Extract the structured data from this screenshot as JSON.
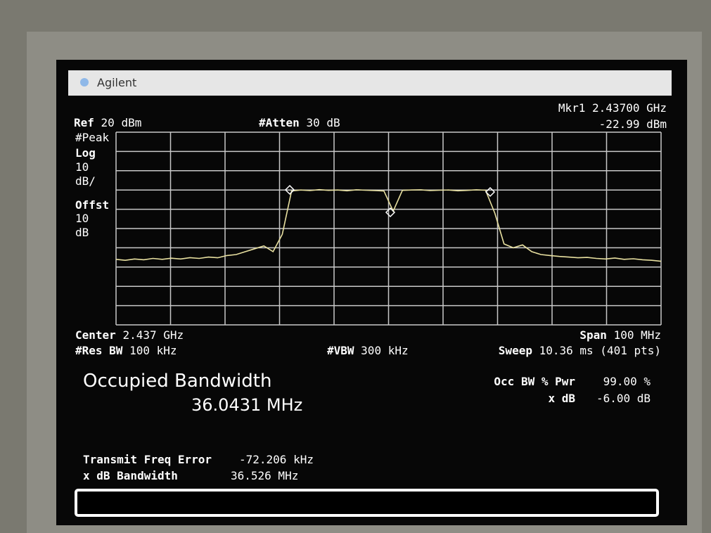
{
  "header": {
    "brand": "Agilent"
  },
  "settings": {
    "ref": {
      "label": "Ref",
      "value": "20 dBm"
    },
    "atten": {
      "label": "#Atten",
      "value": "30 dB"
    },
    "marker": {
      "label": "Mkr1",
      "freq": "2.43700 GHz",
      "level": "-22.99 dBm"
    },
    "detector": "#Peak",
    "scale": {
      "label": "Log",
      "per_div": "10",
      "unit": "dB/"
    },
    "offset": {
      "label": "Offst",
      "value": "10",
      "unit": "dB"
    },
    "center": {
      "label": "Center",
      "value": "2.437 GHz"
    },
    "span": {
      "label": "Span",
      "value": "100 MHz"
    },
    "rbw": {
      "label": "#Res BW",
      "value": "100 kHz"
    },
    "vbw": {
      "label": "#VBW",
      "value": "300 kHz"
    },
    "sweep": {
      "label": "Sweep",
      "value": "10.36 ms (401 pts)"
    }
  },
  "chart_data": {
    "type": "line",
    "color": "#e8e0a0",
    "ylim": [
      -80,
      20
    ],
    "yticks": [
      20,
      10,
      0,
      -10,
      -20,
      -30,
      -40,
      -50,
      -60,
      -70,
      -80
    ],
    "grid": true,
    "values": [
      -46,
      -46.5,
      -45.8,
      -46.2,
      -45.5,
      -46,
      -45.4,
      -45.8,
      -45.1,
      -45.5,
      -44.8,
      -45.2,
      -44,
      -43.5,
      -42,
      -40.5,
      -39,
      -42,
      -33,
      -10.5,
      -10,
      -10.3,
      -9.8,
      -10.2,
      -10,
      -10.4,
      -9.9,
      -10.1,
      -10.3,
      -10.5,
      -21,
      -10.2,
      -10,
      -9.9,
      -10.3,
      -10.1,
      -10,
      -10.4,
      -10.2,
      -9.9,
      -10.1,
      -22,
      -38,
      -40,
      -38.5,
      -42,
      -43.5,
      -44,
      -44.5,
      -44.8,
      -45.2,
      -45,
      -45.5,
      -45.8,
      -45.3,
      -46,
      -45.7,
      -46.2,
      -46.5,
      -47
    ]
  },
  "measurement": {
    "title": "Occupied Bandwidth",
    "result": "36.0431 MHz",
    "params": [
      {
        "label": "Occ BW % Pwr",
        "value": "99.00 %"
      },
      {
        "label": "x dB",
        "value": "-6.00 dB"
      }
    ],
    "details": [
      {
        "label": "Transmit Freq Error",
        "value": "-72.206 kHz"
      },
      {
        "label": "x dB Bandwidth",
        "value": "36.526 MHz"
      }
    ]
  }
}
